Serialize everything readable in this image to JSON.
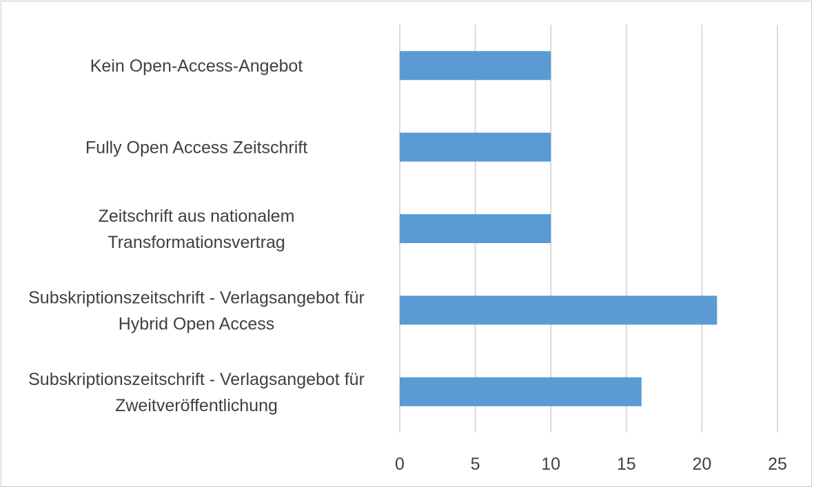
{
  "chart_data": {
    "type": "bar",
    "orientation": "horizontal",
    "title": "",
    "xlabel": "",
    "ylabel": "",
    "xlim": [
      0,
      25
    ],
    "xticks": [
      0,
      5,
      10,
      15,
      20,
      25
    ],
    "grid": true,
    "legend": "none",
    "bar_color": "#5b9bd5",
    "categories": [
      [
        "Kein Open-Access-Angebot"
      ],
      [
        "Fully Open Access Zeitschrift"
      ],
      [
        "Zeitschrift aus nationalem",
        "Transformationsvertrag"
      ],
      [
        "Subskriptionszeitschrift - Verlagsangebot für",
        "Hybrid Open Access"
      ],
      [
        "Subskriptionszeitschrift - Verlagsangebot für",
        "Zweitveröffentlichung"
      ]
    ],
    "values": [
      10,
      10,
      10,
      21,
      16
    ]
  }
}
